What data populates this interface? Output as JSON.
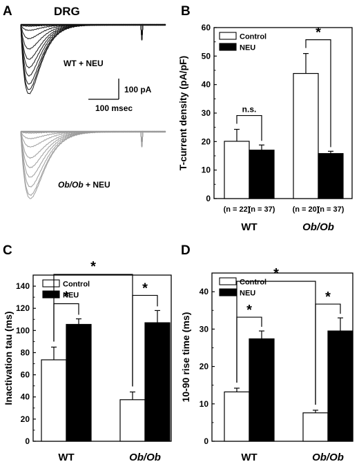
{
  "panels": {
    "A": {
      "letter": "A",
      "title": "DRG",
      "label_wt": "WT + NEU",
      "label_obob_italic": "Ob/Ob",
      "label_obob_rest": " + NEU",
      "scale_current": "100 pA",
      "scale_time": "100 msec",
      "trace_colors": {
        "wt": "#111111",
        "obob": "#9a9a9a"
      }
    },
    "B": {
      "letter": "B"
    },
    "C": {
      "letter": "C"
    },
    "D": {
      "letter": "D"
    }
  },
  "chart_data": [
    {
      "panel": "B",
      "type": "bar",
      "ylabel": "T-current density (pA/pF)",
      "ylim": [
        0,
        60
      ],
      "yticks": [
        0,
        10,
        20,
        30,
        40,
        50,
        60
      ],
      "categories": [
        "WT",
        "Ob/Ob"
      ],
      "category_italic": [
        false,
        true
      ],
      "series": [
        {
          "name": "Control",
          "color": "#ffffff",
          "values": [
            20.1,
            43.9
          ],
          "errors": [
            4.2,
            7.0
          ]
        },
        {
          "name": "NEU",
          "color": "#000000",
          "values": [
            17.0,
            15.8
          ],
          "errors": [
            1.8,
            0.8
          ]
        }
      ],
      "n_labels": [
        "(n = 22)",
        "(n = 37)",
        "(n = 20)",
        "(n = 37)"
      ],
      "legend": "top-left",
      "annotations": [
        {
          "text": "n.s.",
          "group": 0
        },
        {
          "text": "*",
          "group": 1
        }
      ]
    },
    {
      "panel": "C",
      "type": "bar",
      "ylabel": "Inactivation tau (ms)",
      "ylim": [
        0,
        150
      ],
      "yticks": [
        0,
        20,
        40,
        60,
        80,
        100,
        120,
        140
      ],
      "categories": [
        "WT",
        "Ob/Ob"
      ],
      "category_italic": [
        false,
        true
      ],
      "series": [
        {
          "name": "Control",
          "color": "#ffffff",
          "values": [
            73.5,
            37.5
          ],
          "errors": [
            11.5,
            7.0
          ]
        },
        {
          "name": "NEU",
          "color": "#000000",
          "values": [
            105.5,
            107.0
          ],
          "errors": [
            5.0,
            11.0
          ]
        }
      ],
      "legend": "top-left",
      "annotations": [
        {
          "text": "*",
          "type": "within",
          "group": 0
        },
        {
          "text": "*",
          "type": "within",
          "group": 1
        },
        {
          "text": "*",
          "type": "between-control"
        }
      ]
    },
    {
      "panel": "D",
      "type": "bar",
      "ylabel": "10-90 rise time (ms)",
      "ylim": [
        0,
        45
      ],
      "yticks": [
        0,
        10,
        20,
        30,
        40
      ],
      "categories": [
        "WT",
        "Ob/Ob"
      ],
      "category_italic": [
        false,
        true
      ],
      "series": [
        {
          "name": "Control",
          "color": "#ffffff",
          "values": [
            13.2,
            7.6
          ],
          "errors": [
            1.0,
            0.7
          ]
        },
        {
          "name": "NEU",
          "color": "#000000",
          "values": [
            27.4,
            29.5
          ],
          "errors": [
            2.1,
            3.5
          ]
        }
      ],
      "legend": "top-left",
      "annotations": [
        {
          "text": "*",
          "type": "within",
          "group": 0
        },
        {
          "text": "*",
          "type": "within",
          "group": 1
        },
        {
          "text": "*",
          "type": "between-control"
        }
      ]
    }
  ]
}
